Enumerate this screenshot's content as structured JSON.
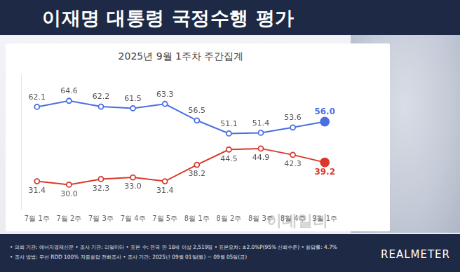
{
  "chart_data": {
    "type": "line",
    "title": "이재명 대통령 국정수행 평가",
    "subtitle": "2025년 9월 1주차 주간집계",
    "categories": [
      "7월 1주",
      "7월 2주",
      "7월 3주",
      "7월 4주",
      "7월 5주",
      "8월 1주",
      "8월 2주",
      "8월 3주",
      "8월 4주",
      "9월 1주"
    ],
    "series": [
      {
        "color": "#4a6fe3",
        "marker": "circle",
        "values": [
          62.1,
          64.6,
          62.2,
          61.5,
          63.3,
          56.5,
          51.1,
          51.4,
          53.6,
          56.0
        ],
        "value_labels": [
          "62.1",
          "64.6",
          "62.2",
          "61.5",
          "63.3",
          "56.5",
          "51.1",
          "51.4",
          "53.6",
          "56.0"
        ]
      },
      {
        "color": "#d9392b",
        "marker": "circle",
        "values": [
          31.4,
          30.0,
          32.3,
          33.0,
          31.4,
          38.2,
          44.5,
          44.9,
          42.3,
          39.2
        ],
        "value_labels": [
          "31.4",
          "30.0",
          "32.3",
          "33.0",
          "31.4",
          "38.2",
          "44.5",
          "44.9",
          "42.3",
          "39.2"
        ]
      }
    ],
    "ylim": [
      20,
      75
    ],
    "grid": false,
    "data_labels": true,
    "tick_labels": "x"
  },
  "footer_notes": [
    "• 의뢰 기관: 에너지경제신문 • 조사 기관: 리얼미터 • 표본 수: 전국 만 18세 이상 2,519명 • 표본오차: ±2.0%P(95% 신뢰수준) • 응답률: 4.7%",
    "• 조사 방법: 무선 RDD 100% 자동응답 전화조사 • 조사 기간: 2025년 09월 01일(월) ~ 09월 05일(금)"
  ],
  "watermark": "이데일리",
  "logo": "REALMETER"
}
